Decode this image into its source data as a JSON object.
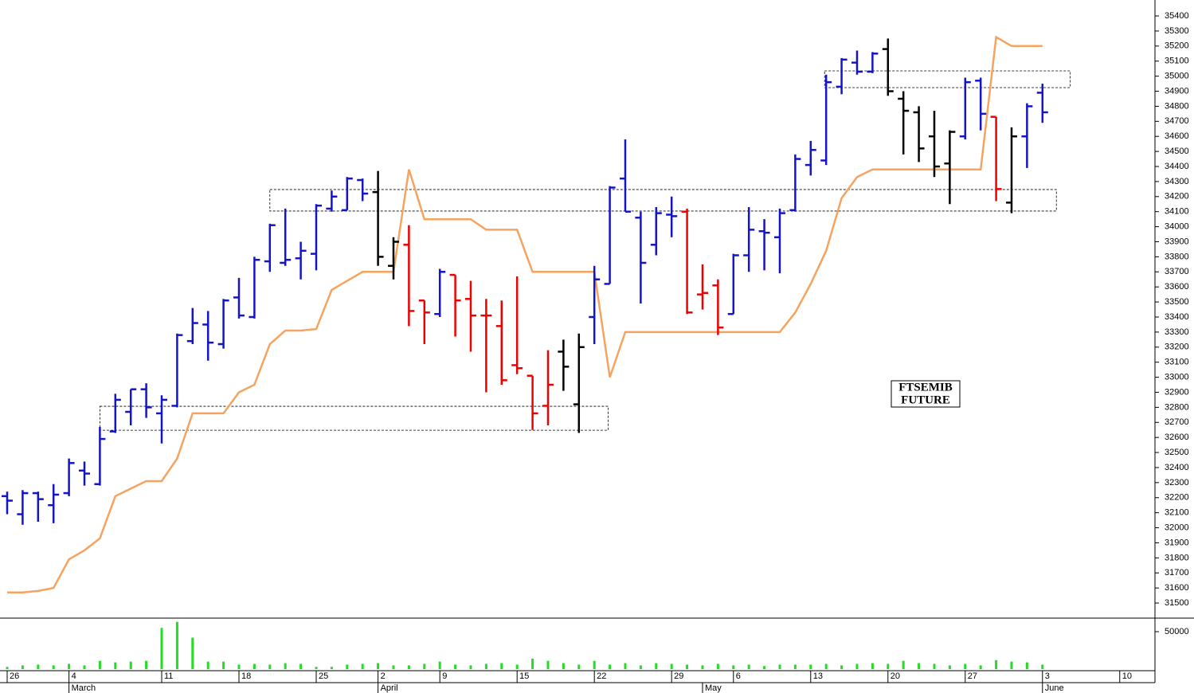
{
  "chart_data": {
    "type": "ohlc",
    "categories": [
      "26",
      null,
      null,
      null,
      "4",
      null,
      null,
      null,
      null,
      null,
      "11",
      null,
      null,
      null,
      null,
      "18",
      null,
      null,
      null,
      null,
      "25",
      null,
      null,
      null,
      "2",
      null,
      null,
      null,
      "9",
      null,
      null,
      null,
      null,
      "15",
      null,
      null,
      null,
      null,
      "22",
      null,
      null,
      null,
      null,
      "29",
      null,
      null,
      null,
      "6",
      null,
      null,
      null,
      null,
      "13",
      null,
      null,
      null,
      null,
      "20",
      null,
      null,
      null,
      null,
      "27",
      null,
      null,
      null,
      null,
      "3",
      null,
      null,
      null,
      null,
      "10",
      null,
      null
    ],
    "month_labels": [
      {
        "index": 4,
        "label": "March"
      },
      {
        "index": 24,
        "label": "April"
      },
      {
        "index": 45,
        "label": "May"
      },
      {
        "index": 67,
        "label": "June"
      }
    ],
    "xlim": [
      -0.464,
      74.28
    ],
    "ylim": [
      31405,
      35506
    ],
    "yticks": [
      31500,
      31600,
      31700,
      31800,
      31900,
      32000,
      32100,
      32200,
      32300,
      32400,
      32500,
      32600,
      32700,
      32800,
      32900,
      33000,
      33100,
      33200,
      33300,
      33400,
      33500,
      33600,
      33700,
      33800,
      33900,
      34000,
      34100,
      34200,
      34300,
      34400,
      34500,
      34600,
      34700,
      34800,
      34900,
      35000,
      35100,
      35200,
      35300,
      35400
    ],
    "ohlc": {
      "open": [
        32210,
        32090,
        32230,
        32150,
        32230,
        32380,
        32290,
        32640,
        32770,
        32920,
        32760,
        32810,
        33240,
        33350,
        33220,
        33530,
        33400,
        33770,
        33760,
        33790,
        33820,
        34120,
        34110,
        34310,
        34230,
        33740,
        33880,
        33510,
        33420,
        33680,
        33520,
        33410,
        33340,
        33080,
        33010,
        32810,
        33170,
        32820,
        33400,
        33620,
        34320,
        34060,
        33880,
        34080,
        34100,
        33550,
        33610,
        33420,
        33810,
        33970,
        33930,
        34110,
        34410,
        34440,
        34930,
        35090,
        35030,
        35180,
        34850,
        34760,
        34600,
        34420,
        34600,
        34970,
        34730,
        34160,
        34600,
        34890,
        null,
        null,
        null,
        null,
        null,
        null,
        null
      ],
      "high": [
        32240,
        32250,
        32240,
        32290,
        32460,
        32440,
        32670,
        32890,
        32920,
        32960,
        32880,
        33290,
        33460,
        33440,
        33520,
        33660,
        33800,
        34020,
        34120,
        33900,
        34150,
        34240,
        34330,
        34320,
        34370,
        33930,
        34010,
        33510,
        33720,
        33680,
        33640,
        33520,
        33510,
        33670,
        33010,
        33180,
        33250,
        33290,
        33740,
        34270,
        34580,
        34100,
        34130,
        34200,
        34120,
        33750,
        33650,
        33820,
        34130,
        34050,
        34120,
        34480,
        34570,
        35010,
        35120,
        35170,
        35160,
        35250,
        34900,
        34800,
        34770,
        34640,
        34990,
        34990,
        34730,
        34660,
        34820,
        34950,
        null,
        null,
        null,
        null,
        null,
        null,
        null
      ],
      "low": [
        32090,
        32020,
        32040,
        32030,
        32210,
        32280,
        32280,
        32630,
        32680,
        32730,
        32560,
        32800,
        33220,
        33110,
        33190,
        33390,
        33390,
        33700,
        33740,
        33650,
        33710,
        34100,
        34110,
        34170,
        33740,
        33650,
        33340,
        33220,
        33400,
        33270,
        33170,
        32900,
        32950,
        33020,
        32650,
        32680,
        32910,
        32630,
        33220,
        33620,
        34100,
        33490,
        33810,
        33930,
        33420,
        33450,
        33280,
        33420,
        33700,
        33710,
        33690,
        34100,
        34340,
        34410,
        34880,
        35010,
        35020,
        34870,
        34480,
        34430,
        34330,
        34150,
        34580,
        34640,
        34170,
        34090,
        34390,
        34690,
        null,
        null,
        null,
        null,
        null,
        null,
        null
      ],
      "close": [
        32180,
        32230,
        32190,
        32220,
        32430,
        32360,
        32590,
        32850,
        32920,
        32800,
        32850,
        33280,
        33360,
        33230,
        33510,
        33410,
        33780,
        34010,
        33780,
        33840,
        34140,
        34200,
        34320,
        34220,
        33800,
        33900,
        33440,
        33430,
        33700,
        33510,
        33410,
        33410,
        32980,
        33060,
        32760,
        32950,
        33070,
        33200,
        33650,
        34260,
        34100,
        33760,
        34090,
        34070,
        33430,
        33560,
        33330,
        33810,
        33980,
        33960,
        34090,
        34450,
        34510,
        34960,
        35110,
        35030,
        35150,
        34900,
        34770,
        34520,
        34400,
        34630,
        34960,
        34750,
        34250,
        34600,
        34800,
        34760,
        null,
        null,
        null,
        null,
        null,
        null,
        null
      ],
      "colors": [
        "b",
        "b",
        "b",
        "b",
        "b",
        "b",
        "b",
        "b",
        "b",
        "b",
        "b",
        "b",
        "b",
        "b",
        "b",
        "b",
        "b",
        "b",
        "b",
        "b",
        "b",
        "b",
        "b",
        "b",
        "k",
        "k",
        "r",
        "r",
        "b",
        "r",
        "r",
        "r",
        "r",
        "r",
        "r",
        "r",
        "k",
        "k",
        "b",
        "b",
        "b",
        "b",
        "b",
        "b",
        "r",
        "r",
        "r",
        "b",
        "b",
        "b",
        "b",
        "b",
        "b",
        "b",
        "b",
        "b",
        "b",
        "k",
        "k",
        "k",
        "k",
        "k",
        "b",
        "b",
        "r",
        "k",
        "b",
        "b",
        null,
        null,
        null,
        null,
        null,
        null,
        null
      ],
      "palette": {
        "b": "#1414c8",
        "r": "#ee0000",
        "k": "#000000"
      }
    },
    "line": {
      "color": "#f5a35f",
      "values": [
        31570,
        31570,
        31580,
        31600,
        31790,
        31850,
        31930,
        32210,
        32260,
        32310,
        32310,
        32460,
        32760,
        32760,
        32760,
        32900,
        32950,
        33220,
        33310,
        33310,
        33320,
        33580,
        33640,
        33700,
        33700,
        33700,
        34380,
        34050,
        34050,
        34050,
        34050,
        33980,
        33980,
        33980,
        33700,
        33700,
        33700,
        33700,
        33700,
        33000,
        33300,
        33300,
        33300,
        33300,
        33300,
        33300,
        33300,
        33300,
        33300,
        33300,
        33300,
        33430,
        33620,
        33840,
        34190,
        34330,
        34380,
        34380,
        34380,
        34380,
        34380,
        34380,
        34380,
        34380,
        35260,
        35200,
        35200,
        35200,
        null,
        null,
        null,
        null,
        null,
        null,
        null
      ]
    },
    "volume": {
      "color": "#22dd22",
      "ylim": [
        0,
        67000
      ],
      "yticks": [
        50000
      ],
      "values": [
        3000,
        5000,
        6000,
        5000,
        7000,
        5000,
        11000,
        9000,
        10000,
        11000,
        55000,
        63000,
        42000,
        10000,
        10000,
        6000,
        7000,
        6000,
        8000,
        7000,
        3000,
        3000,
        6000,
        7000,
        8000,
        5000,
        5000,
        7000,
        10000,
        6000,
        5000,
        7000,
        8000,
        6000,
        14000,
        11000,
        8000,
        6000,
        11000,
        6000,
        8000,
        5000,
        8000,
        7000,
        6000,
        5000,
        7000,
        5000,
        6000,
        4000,
        6000,
        6000,
        6000,
        7000,
        5000,
        7000,
        8000,
        7000,
        11000,
        8000,
        7000,
        5000,
        7000,
        5000,
        12000,
        10000,
        9000,
        6000,
        null,
        null,
        null,
        null,
        null,
        null,
        null
      ]
    },
    "zones": [
      {
        "x": [
          6,
          38.9
        ],
        "y": [
          32648,
          32807
        ]
      },
      {
        "x": [
          17,
          67.9
        ],
        "y": [
          34104,
          34247
        ]
      },
      {
        "x": [
          52.9,
          68.8
        ],
        "y": [
          34924,
          35035
        ]
      }
    ],
    "annotation": [
      "FTSEMIB",
      "FUTURE"
    ]
  }
}
